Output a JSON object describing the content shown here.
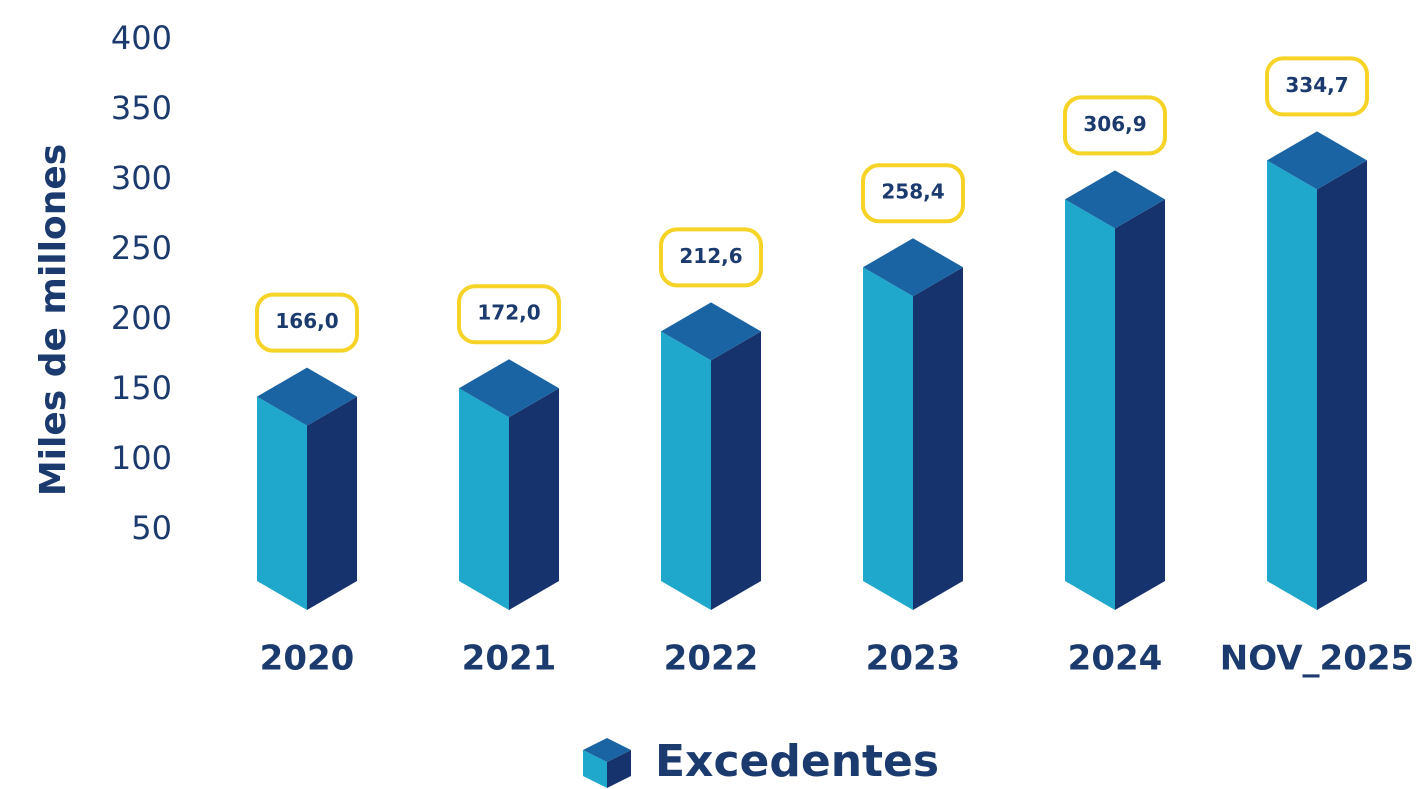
{
  "chart_data": {
    "type": "bar3d",
    "y_label": "Miles de millones",
    "categories": [
      "2020",
      "2021",
      "2022",
      "2023",
      "2024",
      "NOV_2025"
    ],
    "series": [
      {
        "name": "Excedentes",
        "colors": [
          "#1fa7cc",
          "#1a64a3",
          "#17336e"
        ],
        "values": [
          166.0,
          172.0,
          212.6,
          258.4,
          306.9,
          334.7
        ],
        "value_labels": [
          "166,0",
          "172,0",
          "212,6",
          "258,4",
          "306,9",
          "334,7"
        ]
      }
    ],
    "ylim": [
      0,
      400
    ],
    "yticks": [
      50,
      100,
      150,
      200,
      250,
      300,
      350,
      400
    ],
    "grid": false,
    "label_box_color": "#f5d327",
    "text_color": "#1b3a6e"
  }
}
